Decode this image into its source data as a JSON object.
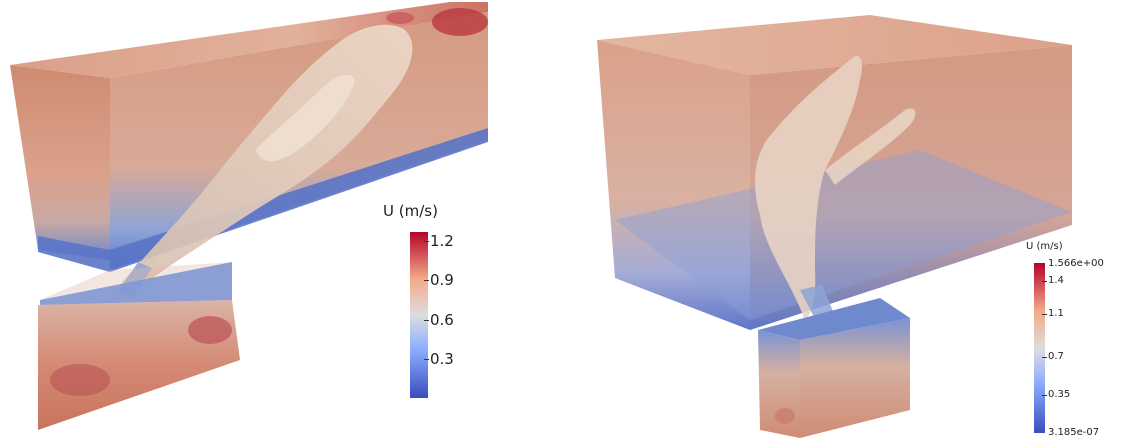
{
  "colormap": {
    "low": "#3b4cc0",
    "mid": "#dddddd",
    "high": "#b40426"
  },
  "left_view": {
    "legend": {
      "title": "U (m/s)",
      "ticks": [
        {
          "label": "1.2",
          "value": 1.2
        },
        {
          "label": "0.9",
          "value": 0.9
        },
        {
          "label": "0.6",
          "value": 0.6
        },
        {
          "label": "0.3",
          "value": 0.3
        }
      ],
      "range": [
        0.0,
        1.27
      ]
    }
  },
  "right_view": {
    "legend": {
      "title": "U (m/s)",
      "max_label": "1.566e+00",
      "min_label": "3.185e-07",
      "ticks": [
        {
          "label": "1.4",
          "value": 1.4
        },
        {
          "label": "1.1",
          "value": 1.1
        },
        {
          "label": "0.7",
          "value": 0.7
        },
        {
          "label": "0.35",
          "value": 0.35
        }
      ],
      "range": [
        3.185e-07,
        1.566
      ]
    }
  }
}
